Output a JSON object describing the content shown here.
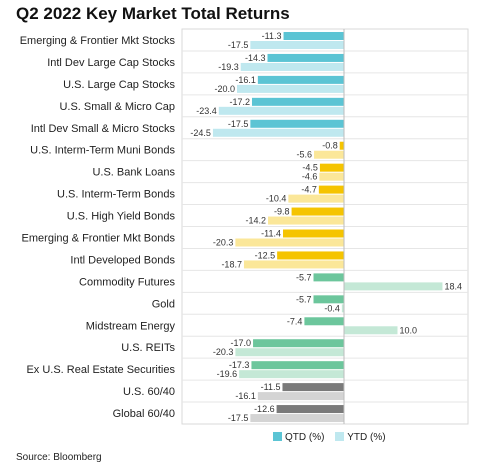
{
  "chart_data": {
    "type": "bar",
    "orientation": "horizontal",
    "title": "Q2 2022 Key Market Total Returns",
    "source": "Source: Bloomberg",
    "legend_position": "bottom-right",
    "grid": false,
    "xlim": [
      -27,
      20
    ],
    "categories": [
      "Emerging & Frontier Mkt Stocks",
      "Intl Dev Large Cap Stocks",
      "U.S. Large Cap Stocks",
      "U.S. Small & Micro Cap",
      "Intl Dev Small & Micro Stocks",
      "U.S. Interm-Term Muni Bonds",
      "U.S. Bank Loans",
      "U.S. Interm-Term Bonds",
      "U.S. High Yield Bonds",
      "Emerging & Frontier Mkt Bonds",
      "Intl Developed Bonds",
      "Commodity Futures",
      "Gold",
      "Midstream Energy",
      "U.S. REITs",
      "Ex U.S. Real Estate Securities",
      "U.S. 60/40",
      "Global 60/40"
    ],
    "groups": [
      "stock",
      "stock",
      "stock",
      "stock",
      "stock",
      "bond",
      "bond",
      "bond",
      "bond",
      "bond",
      "bond",
      "real",
      "real",
      "real",
      "real",
      "real",
      "mix",
      "mix"
    ],
    "colors": {
      "stock": {
        "qtd": "#5bc4d4",
        "ytd": "#bfe8ef"
      },
      "bond": {
        "qtd": "#f5c400",
        "ytd": "#fbe799"
      },
      "real": {
        "qtd": "#6cc69c",
        "ytd": "#c4e8d6"
      },
      "mix": {
        "qtd": "#7a7a7a",
        "ytd": "#d4d4d4"
      },
      "legend_qtd": "#5bc4d4",
      "legend_ytd": "#bfe8ef"
    },
    "series": [
      {
        "name": "QTD (%)",
        "values": [
          -11.3,
          -14.3,
          -16.1,
          -17.2,
          -17.5,
          -0.8,
          -4.5,
          -4.7,
          -9.8,
          -11.4,
          -12.5,
          -5.7,
          -5.7,
          -7.4,
          -17.0,
          -17.3,
          -11.5,
          -12.6
        ],
        "labels": [
          "-11.3",
          "-14.3",
          "-16.1",
          "-17.2",
          "-17.5",
          "-0.8",
          "-4.5",
          "-4.7",
          "-9.8",
          "-11.4",
          "-12.5",
          "-5.7",
          "-5.7",
          "-7.4",
          "-17.0",
          "-17.3",
          "-11.5",
          "-12.6"
        ]
      },
      {
        "name": "YTD (%)",
        "values": [
          -17.5,
          -19.3,
          -20.0,
          -23.4,
          -24.5,
          -5.6,
          -4.6,
          -10.4,
          -14.2,
          -20.3,
          -18.7,
          18.4,
          -0.4,
          10.0,
          -20.3,
          -19.6,
          -16.1,
          -17.5
        ],
        "labels": [
          "-17.5",
          "-19.3",
          "-20.0",
          "-23.4",
          "-24.5",
          "-5.6",
          "-4.6",
          "-10.4",
          "-14.2",
          "-20.3",
          "-18.7",
          "18.4",
          "-0.4",
          "10.0",
          "-20.3",
          "-19.6",
          "-16.1",
          "-17.5"
        ]
      }
    ]
  }
}
